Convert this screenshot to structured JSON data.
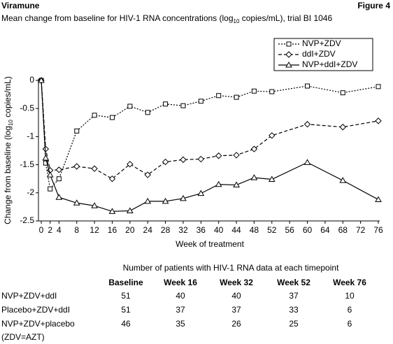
{
  "header": {
    "title": "Viramune",
    "figure": "Figure 4",
    "subtitle": [
      "Mean change from baseline for HIV-1 RNA concentrations (log",
      "10",
      " copies/mL), trial BI 1046"
    ]
  },
  "chart_data": {
    "type": "line",
    "ylabel": [
      "Change from baseline (log",
      "10",
      " copies/mL)"
    ],
    "xlabel": "Week of treatment",
    "xlim": [
      0,
      76
    ],
    "ylim": [
      -2.5,
      0
    ],
    "xticks": [
      0,
      2,
      4,
      8,
      12,
      16,
      20,
      24,
      28,
      32,
      36,
      40,
      44,
      48,
      52,
      56,
      60,
      64,
      68,
      72,
      76
    ],
    "yticks": [
      0,
      -0.5,
      -1,
      -1.5,
      -2,
      -2.5
    ],
    "legend": "upper right",
    "x": [
      0,
      1,
      2,
      4,
      8,
      12,
      16,
      20,
      24,
      28,
      32,
      36,
      40,
      44,
      48,
      52,
      60,
      68,
      76
    ],
    "series": [
      {
        "name": "NVP+ZDV",
        "color": "#000000",
        "marker": "square",
        "dash": "dotted",
        "values": [
          0,
          -1.47,
          -1.93,
          -1.75,
          -0.9,
          -0.62,
          -0.66,
          -0.46,
          -0.57,
          -0.42,
          -0.45,
          -0.37,
          -0.27,
          -0.3,
          -0.19,
          -0.2,
          -0.1,
          -0.22,
          -0.11
        ]
      },
      {
        "name": "ddI+ZDV",
        "color": "#000000",
        "marker": "diamond",
        "dash": "dashed",
        "values": [
          0,
          -1.22,
          -1.6,
          -1.59,
          -1.53,
          -1.57,
          -1.75,
          -1.49,
          -1.68,
          -1.45,
          -1.41,
          -1.4,
          -1.34,
          -1.33,
          -1.22,
          -0.98,
          -0.78,
          -0.83,
          -0.72
        ]
      },
      {
        "name": "NVP+ddI+ZDV",
        "color": "#000000",
        "marker": "triangle",
        "dash": "solid",
        "values": [
          0,
          -1.38,
          -1.68,
          -2.08,
          -2.18,
          -2.23,
          -2.33,
          -2.32,
          -2.15,
          -2.15,
          -2.1,
          -2.01,
          -1.85,
          -1.86,
          -1.73,
          -1.76,
          -1.46,
          -1.78,
          -2.12
        ]
      }
    ]
  },
  "table": {
    "title": "Number of patients with HIV-1 RNA data at each timepoint",
    "columns": [
      "Baseline",
      "Week 16",
      "Week 32",
      "Week 52",
      "Week 76"
    ],
    "rows": [
      [
        "NVP+ZDV+ddI",
        "51",
        "40",
        "40",
        "37",
        "10"
      ],
      [
        "Placebo+ZDV+ddI",
        "51",
        "37",
        "37",
        "33",
        "6"
      ],
      [
        "NVP+ZDV+placebo",
        "46",
        "35",
        "26",
        "25",
        "6"
      ]
    ],
    "note": "(ZDV=AZT)"
  }
}
